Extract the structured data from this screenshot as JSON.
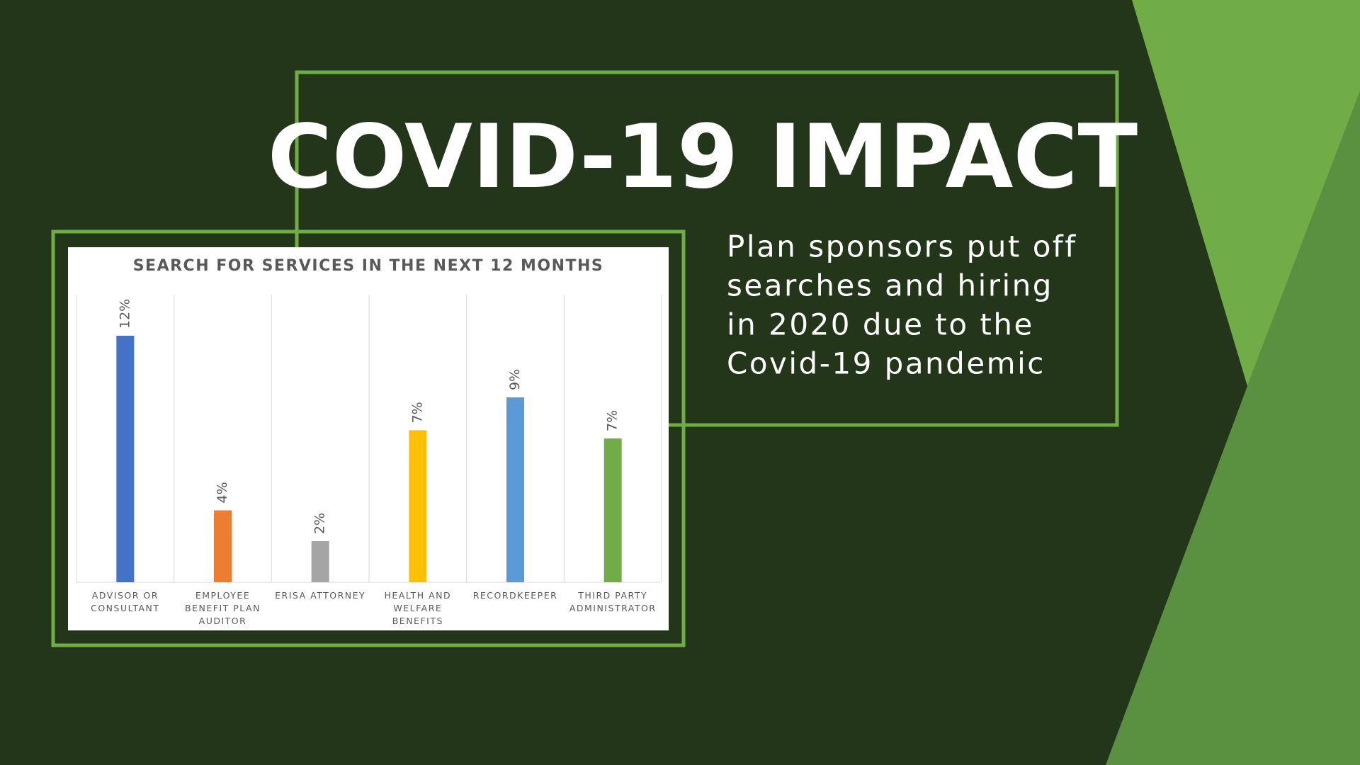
{
  "slide": {
    "title": "COVID-19 IMPACT",
    "body": [
      "Plan sponsors put off",
      "searches and hiring",
      "in 2020 due to the",
      "Covid-19 pandemic"
    ]
  },
  "chart_data": {
    "type": "bar",
    "title": "SEARCH FOR SERVICES IN THE NEXT 12 MONTHS",
    "categories": [
      "ADVISOR OR CONSULTANT",
      "EMPLOYEE BENEFIT PLAN AUDITOR",
      "ERISA ATTORNEY",
      "HEALTH AND WELFARE BENEFITS",
      "RECORDKEEPER",
      "THIRD PARTY ADMINISTRATOR"
    ],
    "values": [
      12,
      3.5,
      2,
      7.4,
      9,
      7
    ],
    "value_labels": [
      "12%",
      "4%",
      "2%",
      "7%",
      "9%",
      "7%"
    ],
    "colors": [
      "#4472c4",
      "#ed7d31",
      "#a5a5a5",
      "#ffc000",
      "#5b9bd5",
      "#70ad47"
    ],
    "ylim": [
      0,
      14
    ],
    "grid": true
  }
}
